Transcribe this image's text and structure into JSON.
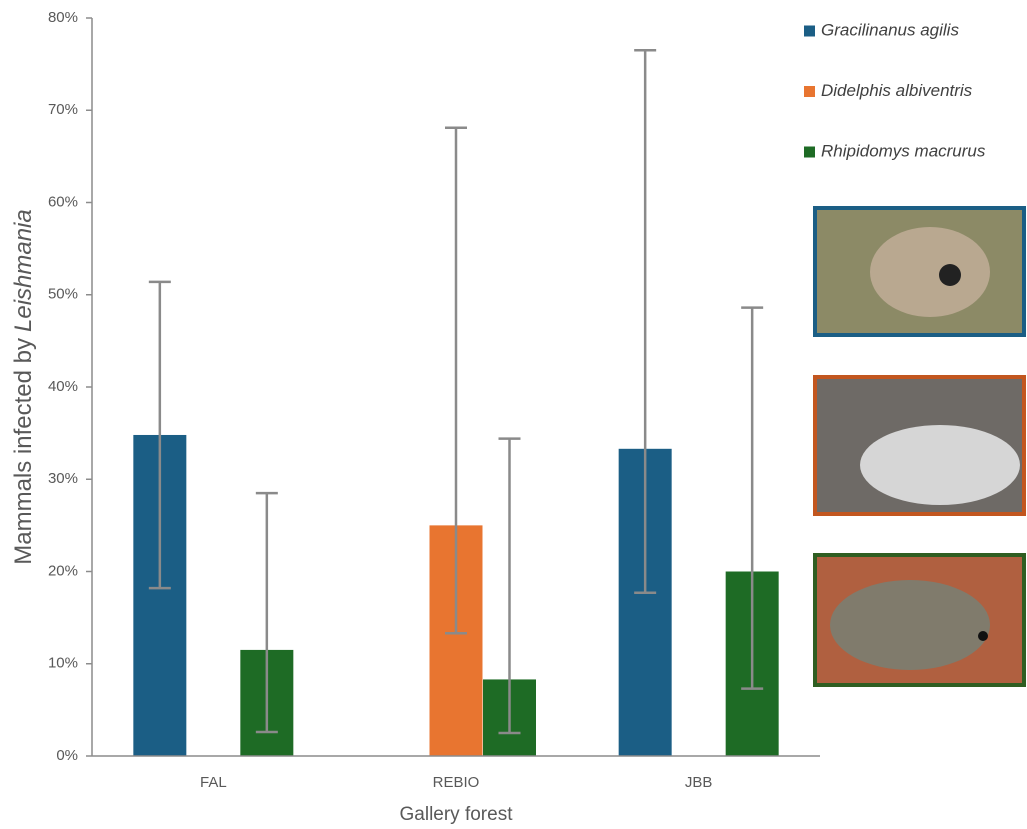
{
  "chart_data": {
    "type": "bar",
    "x_label": "Gallery forest",
    "y_label": {
      "text": "Mammals infected by",
      "italic": "Leishmania"
    },
    "categories": [
      "FAL",
      "REBIO",
      "JBB"
    ],
    "series": [
      {
        "name": "Gracilinanus agilis",
        "color": "#1b5e85",
        "values": [
          34.8,
          null,
          33.3
        ],
        "error_lower": [
          18.2,
          null,
          17.7
        ],
        "error_upper": [
          51.4,
          null,
          76.5
        ]
      },
      {
        "name": "Didelphis albiventris",
        "color": "#e87530",
        "values": [
          null,
          25,
          null
        ],
        "error_lower": [
          null,
          13.3,
          null
        ],
        "error_upper": [
          null,
          68.1,
          null
        ]
      },
      {
        "name": "Rhipidomys macrurus",
        "color": "#1e6b25",
        "values": [
          11.5,
          8.3,
          20
        ],
        "error_lower": [
          2.6,
          2.5,
          7.3
        ],
        "error_upper": [
          28.5,
          34.4,
          48.6
        ]
      }
    ],
    "ylim": [
      0,
      80
    ],
    "yticks": [
      {
        "value": 0,
        "label": "0%"
      },
      {
        "value": 10,
        "label": "10%"
      },
      {
        "value": 20,
        "label": "20%"
      },
      {
        "value": 30,
        "label": "30%"
      },
      {
        "value": 40,
        "label": "40%"
      },
      {
        "value": 50,
        "label": "50%"
      },
      {
        "value": 60,
        "label": "60%"
      },
      {
        "value": 70,
        "label": "70%"
      },
      {
        "value": 80,
        "label": "80%"
      }
    ],
    "legend": "top-right"
  }
}
